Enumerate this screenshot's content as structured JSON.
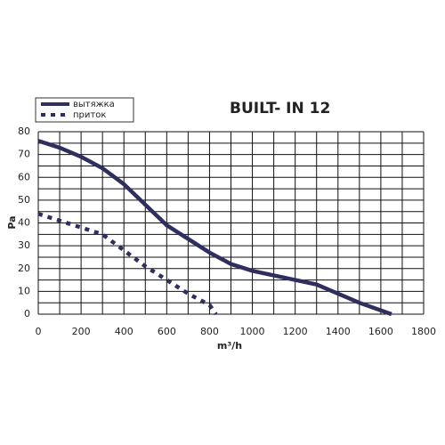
{
  "chart_data": {
    "type": "line",
    "title": "BUILT- IN 12",
    "x_label": "m³/h",
    "y_label": "Pa",
    "xlim": [
      0,
      1800
    ],
    "xticks": [
      0,
      200,
      400,
      600,
      800,
      1000,
      1200,
      1400,
      1600,
      1800
    ],
    "ylim": [
      0,
      80
    ],
    "yticks": [
      0,
      10,
      20,
      30,
      40,
      50,
      60,
      70,
      80
    ],
    "xgrid": [
      0,
      100,
      200,
      300,
      400,
      500,
      600,
      700,
      800,
      900,
      1000,
      1100,
      1200,
      1300,
      1400,
      1500,
      1600,
      1700,
      1800
    ],
    "ygrid": [
      0,
      5,
      10,
      15,
      20,
      25,
      30,
      35,
      40,
      45,
      50,
      55,
      60,
      65,
      70,
      75,
      80
    ],
    "grid": true,
    "legend": "top-left",
    "series": [
      {
        "name": "вытяжка",
        "color": "#2e2f5e",
        "style": "solid",
        "x": [
          0,
          100,
          200,
          300,
          400,
          500,
          600,
          700,
          800,
          900,
          1000,
          1100,
          1200,
          1300,
          1400,
          1500,
          1650
        ],
        "values": [
          76,
          73,
          69,
          64,
          57,
          48,
          39,
          33,
          27,
          22,
          19,
          17,
          15,
          13,
          9,
          5,
          0
        ]
      },
      {
        "name": "приток",
        "color": "#2e2f5e",
        "style": "dotted",
        "x": [
          0,
          100,
          200,
          300,
          400,
          500,
          600,
          700,
          800,
          830
        ],
        "values": [
          44,
          41,
          38,
          35,
          28,
          21,
          15,
          9,
          4,
          0
        ]
      }
    ]
  }
}
